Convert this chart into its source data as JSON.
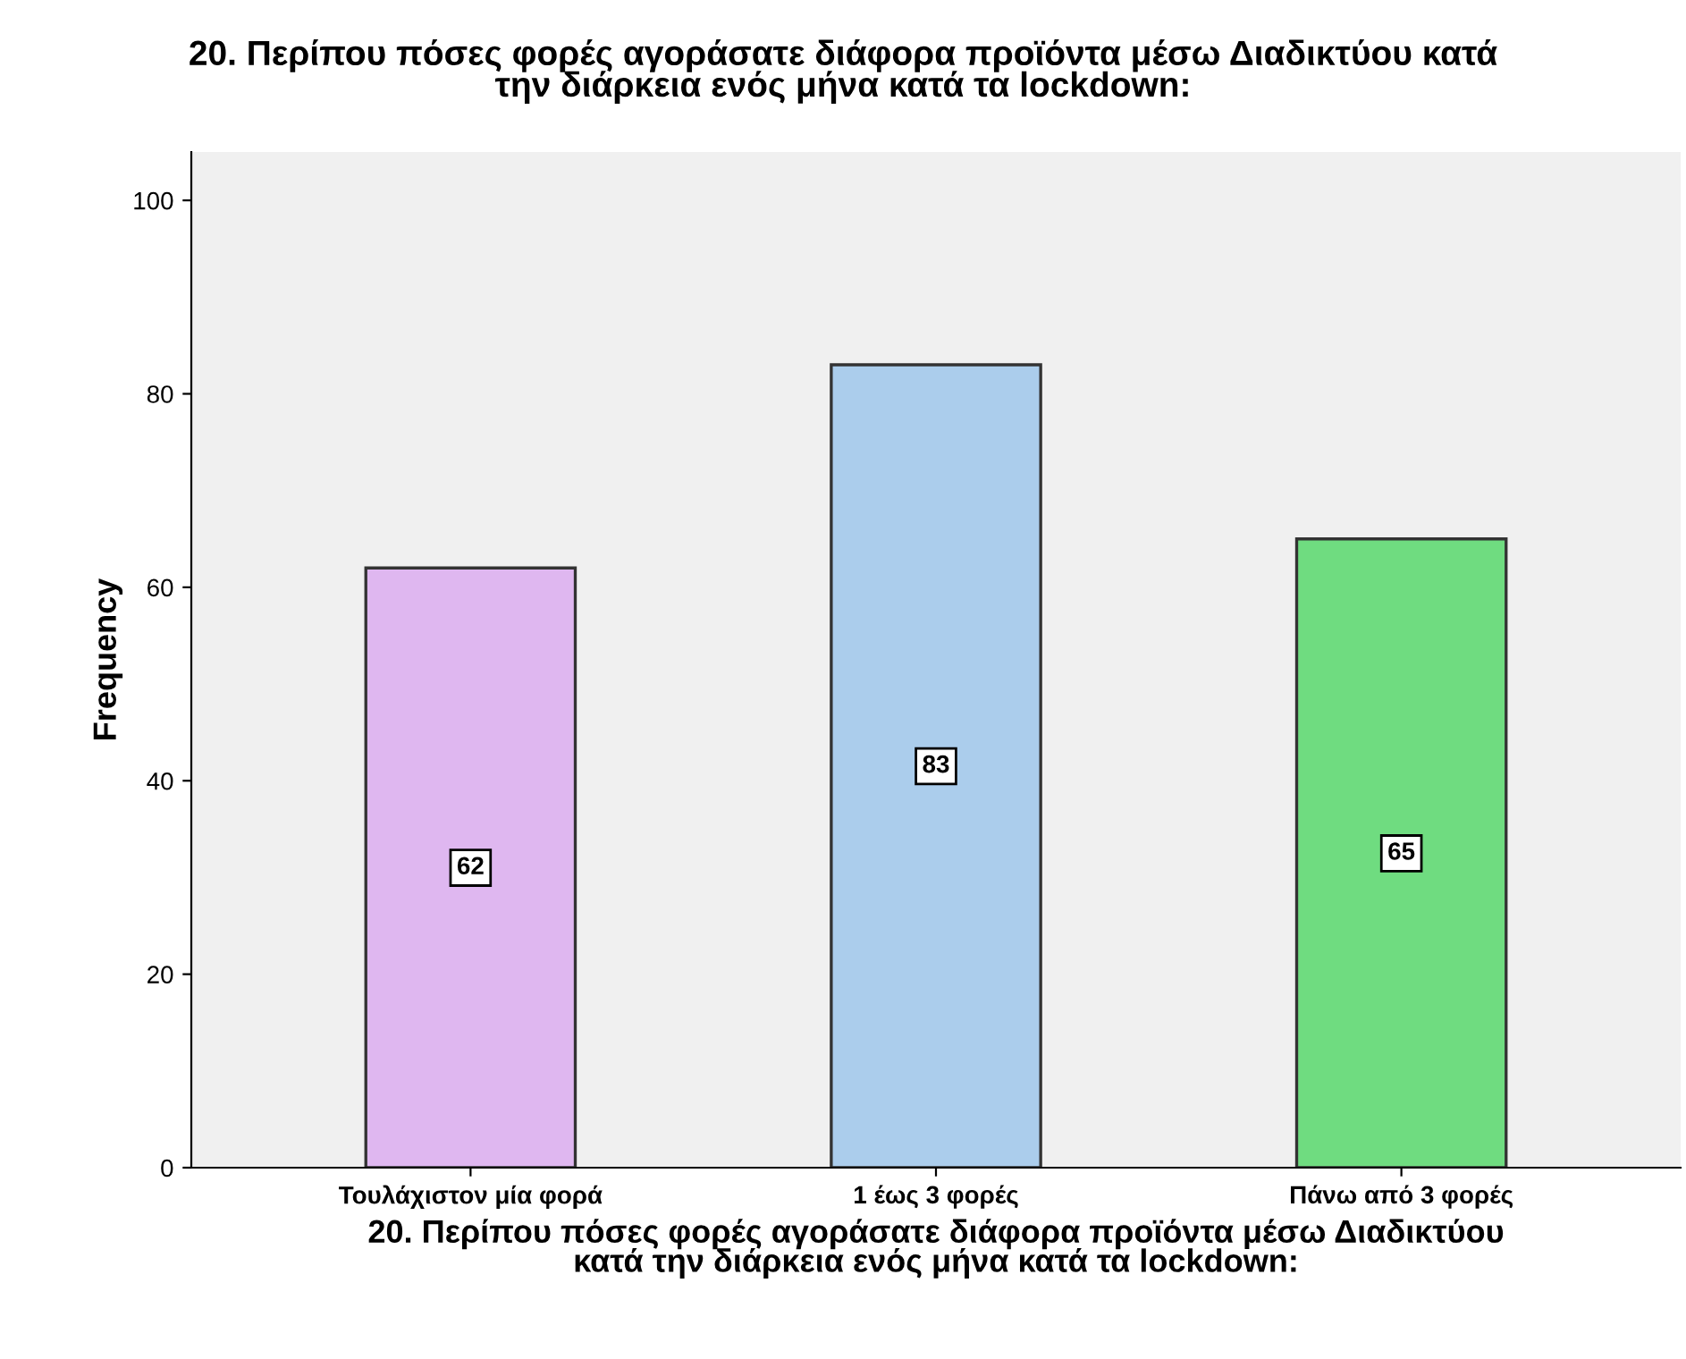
{
  "chart_data": {
    "type": "bar",
    "title": "20. Περίπου πόσες φορές αγοράσατε διάφορα προϊόντα μέσω Διαδικτύου κατά\nτην διάρκεια ενός μήνα κατά τα lockdown:",
    "xlabel": "20. Περίπου πόσες φορές αγοράσατε διάφορα προϊόντα μέσω Διαδικτύου\nκατά την διάρκεια ενός μήνα κατά τα lockdown:",
    "ylabel": "Frequency",
    "categories": [
      "Τουλάχιστον μία φορά",
      "1 έως 3 φορές",
      "Πάνω από 3 φορές"
    ],
    "values": [
      62,
      83,
      65
    ],
    "colors": [
      "#dfb7f0",
      "#abcdec",
      "#6fdc80"
    ],
    "ylim": [
      0,
      105
    ],
    "yticks": [
      0,
      20,
      40,
      60,
      80,
      100
    ],
    "data_labels": true,
    "grid": false,
    "legend": false
  }
}
